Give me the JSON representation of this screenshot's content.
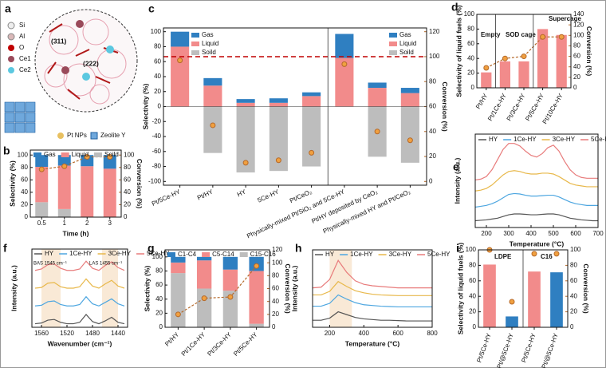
{
  "panel_a": {
    "label": "a",
    "legend": [
      "Si",
      "Al",
      "O",
      "Ce1",
      "Ce2"
    ],
    "facets": [
      "(311)",
      "(222)"
    ],
    "items": [
      "Pt NPs",
      "Zeolite Y"
    ]
  },
  "chart_data": [
    {
      "panel": "b",
      "type": "bar",
      "categories": [
        "0.5",
        "1",
        "2",
        "3"
      ],
      "xlabel": "Time (h)",
      "ylabel": "Selectivity (%)",
      "y2label": "Conversion (%)",
      "ylim": [
        0,
        108
      ],
      "yticks": [
        0,
        20,
        40,
        60,
        80,
        100
      ],
      "y2lim": [
        0,
        108
      ],
      "y2ticks": [
        0,
        20,
        40,
        60,
        80,
        100
      ],
      "legend": "top",
      "series": [
        {
          "name": "Gas",
          "color": "#2f7fc1",
          "values": [
            19,
            17,
            18,
            22
          ]
        },
        {
          "name": "Liquid",
          "color": "#f28b8b",
          "values": [
            57,
            70,
            82,
            78
          ]
        },
        {
          "name": "Soild",
          "color": "#bdbdbd",
          "values": [
            24,
            13,
            0,
            0
          ]
        },
        {
          "axis": "y2",
          "color": "#b5692a",
          "values": [
            77,
            82,
            97,
            97
          ]
        }
      ]
    },
    {
      "panel": "c",
      "type": "bar",
      "categories": [
        "Pt/5Ce-HY",
        "Pt/HY",
        "HY",
        "5Ce-HY",
        "Pt/CeO₂",
        "Physically-mixed Pt/SiO₂ and 5Ce-HY",
        "Pt/HY deposited by CeO₂",
        "Physically-mixed HY and Pt/CeO₂"
      ],
      "ylabel": "Selectivity (%)",
      "y2label": "Conversion (%)",
      "ylim": [
        -105,
        105
      ],
      "yticks": [
        -100,
        -80,
        -60,
        -40,
        -20,
        0,
        20,
        40,
        60,
        80,
        100
      ],
      "y2lim": [
        -3,
        123
      ],
      "y2ticks": [
        0,
        20,
        40,
        60,
        80,
        100,
        120
      ],
      "reference_y2": 100,
      "legend": "top-right",
      "series": [
        {
          "name": "Gas",
          "color": "#2f7fc1",
          "values": [
            20,
            10,
            5,
            6,
            5,
            32,
            7,
            7
          ]
        },
        {
          "name": "Liquid",
          "color": "#f28b8b",
          "values": [
            80,
            28,
            5,
            5,
            14,
            65,
            25,
            18
          ]
        },
        {
          "name": "Soild",
          "color": "#bdbdbd",
          "values": [
            0,
            -62,
            -88,
            -86,
            -80,
            0,
            -67,
            -75
          ]
        },
        {
          "axis": "y2",
          "style": "markers",
          "color": "#b5692a",
          "values": [
            97,
            45,
            15,
            17,
            23,
            94,
            40,
            33
          ]
        }
      ]
    },
    {
      "panel": "d",
      "type": "bar",
      "categories": [
        "Pt/HY",
        "Pt/1Ce-HY",
        "Pt/3Ce-HY",
        "Pt/5Ce-HY",
        "Pt/10Ce-HY"
      ],
      "ylabel": "Selectivity of liquid fuels (%)",
      "y2label": "Conversion (%)",
      "ylim": [
        0,
        100
      ],
      "yticks": [
        0,
        20,
        40,
        60,
        80,
        100
      ],
      "y2lim": [
        0,
        140
      ],
      "y2ticks": [
        0,
        20,
        40,
        60,
        80,
        100,
        120,
        140
      ],
      "annotations": [
        "Empty",
        "SOD cage",
        "Supercage"
      ],
      "series": [
        {
          "color": "#f28b8b",
          "values": [
            21,
            36,
            36,
            80,
            72
          ]
        },
        {
          "axis": "y2",
          "color": "#b5692a",
          "values": [
            38,
            56,
            60,
            97,
            97
          ]
        }
      ]
    },
    {
      "panel": "e",
      "type": "line",
      "xlabel": "Temperature (°C)",
      "ylabel": "Intensity (a.u.)",
      "xlim": [
        150,
        700
      ],
      "xticks": [
        200,
        300,
        400,
        500,
        600,
        700
      ],
      "ylim": [
        0,
        11
      ],
      "legend": "top",
      "x": [
        150,
        175,
        200,
        225,
        250,
        275,
        300,
        325,
        350,
        375,
        400,
        425,
        450,
        475,
        500,
        525,
        550,
        575,
        600,
        625,
        650,
        675,
        700
      ],
      "series": [
        {
          "name": "HY",
          "color": "#555555",
          "values": [
            0.8,
            0.85,
            0.9,
            1.0,
            1.1,
            1.3,
            1.5,
            1.6,
            1.6,
            1.55,
            1.5,
            1.5,
            1.55,
            1.6,
            1.6,
            1.5,
            1.3,
            1.1,
            1.0,
            0.9,
            0.85,
            0.8,
            0.8
          ]
        },
        {
          "name": "1Ce-HY",
          "color": "#4da6e0",
          "values": [
            2.4,
            2.5,
            2.6,
            2.8,
            3.1,
            3.5,
            3.9,
            4.0,
            3.95,
            3.8,
            3.7,
            3.7,
            3.75,
            3.8,
            3.8,
            3.6,
            3.3,
            3.0,
            2.8,
            2.7,
            2.6,
            2.6,
            2.6
          ]
        },
        {
          "name": "3Ce-HY",
          "color": "#e8b84a",
          "values": [
            4.3,
            4.4,
            4.6,
            5.0,
            5.6,
            6.2,
            6.6,
            6.7,
            6.6,
            6.4,
            6.3,
            6.3,
            6.4,
            6.4,
            6.3,
            6.0,
            5.6,
            5.2,
            5.0,
            4.9,
            4.8,
            4.8,
            4.8
          ]
        },
        {
          "name": "5Ce-HY",
          "color": "#e87b7b",
          "values": [
            5.6,
            5.7,
            6.0,
            6.8,
            8.0,
            9.2,
            9.9,
            9.9,
            9.6,
            9.0,
            8.5,
            8.3,
            8.7,
            9.4,
            9.7,
            9.0,
            7.8,
            6.8,
            6.2,
            5.9,
            5.8,
            5.8,
            5.8
          ]
        }
      ]
    },
    {
      "panel": "f",
      "type": "line",
      "xlabel": "Wavenumber (cm⁻¹)",
      "ylabel": "Intensity (a.u.)",
      "xlim": [
        1575,
        1425
      ],
      "xticks": [
        1560,
        1520,
        1480,
        1440
      ],
      "ylim": [
        0,
        11
      ],
      "legend": "top",
      "bands": [
        [
          1560,
          1530
        ],
        [
          1465,
          1440
        ]
      ],
      "annotations": [
        "BAS 1545 cm⁻¹",
        "LAS 1455 cm⁻¹"
      ],
      "x": [
        1570,
        1560,
        1550,
        1540,
        1530,
        1520,
        1510,
        1500,
        1490,
        1480,
        1470,
        1460,
        1450,
        1440,
        1430
      ],
      "series": [
        {
          "name": "HY",
          "color": "#555555",
          "values": [
            0.5,
            0.6,
            1.0,
            1.1,
            0.7,
            0.5,
            0.5,
            0.7,
            1.8,
            0.8,
            0.5,
            0.9,
            1.4,
            0.7,
            0.5
          ]
        },
        {
          "name": "1Ce-HY",
          "color": "#4da6e0",
          "values": [
            3.0,
            3.1,
            3.6,
            3.7,
            3.2,
            3.0,
            3.0,
            3.2,
            4.3,
            3.3,
            3.0,
            3.5,
            4.0,
            3.3,
            3.0
          ]
        },
        {
          "name": "3Ce-HY",
          "color": "#e8b84a",
          "values": [
            5.5,
            5.6,
            6.2,
            6.3,
            5.7,
            5.5,
            5.5,
            5.7,
            6.8,
            5.8,
            5.5,
            6.1,
            6.6,
            5.8,
            5.5
          ]
        },
        {
          "name": "5Ce-HY",
          "color": "#e87b7b",
          "values": [
            8.0,
            8.2,
            8.8,
            8.9,
            8.3,
            8.0,
            8.0,
            8.2,
            9.3,
            8.3,
            8.0,
            8.7,
            9.2,
            8.4,
            8.0
          ]
        }
      ]
    },
    {
      "panel": "g",
      "type": "bar",
      "categories": [
        "Pt/HY",
        "Pt/1Ce-HY",
        "Pt/3Ce-HY",
        "Pt/5Ce-HY"
      ],
      "ylabel": "Selectivity (%)",
      "y2label": "Conversion (%)",
      "ylim": [
        0,
        110
      ],
      "yticks": [
        0,
        20,
        40,
        60,
        80,
        100
      ],
      "y2lim": [
        0,
        120
      ],
      "y2ticks": [
        0,
        20,
        40,
        60,
        80,
        100,
        120
      ],
      "legend": "top",
      "series": [
        {
          "name": "C1-C4",
          "color": "#2f7fc1",
          "values": [
            8,
            5,
            18,
            20
          ]
        },
        {
          "name": "C5-C14",
          "color": "#f28b8b",
          "values": [
            15,
            40,
            30,
            75
          ]
        },
        {
          "name": "C15-C16",
          "color": "#bdbdbd",
          "values": [
            77,
            55,
            52,
            5
          ]
        },
        {
          "axis": "y2",
          "color": "#b5692a",
          "values": [
            20,
            45,
            47,
            95
          ]
        }
      ]
    },
    {
      "panel": "h",
      "type": "line",
      "xlabel": "Temperature (°C)",
      "ylabel": "Intensity (a.u.)",
      "xlim": [
        100,
        800
      ],
      "xticks": [
        200,
        400,
        600,
        800
      ],
      "ylim": [
        0,
        11
      ],
      "legend": "top",
      "bands": [
        [
          200,
          330
        ]
      ],
      "x": [
        100,
        150,
        200,
        250,
        300,
        350,
        400,
        450,
        500,
        550,
        600,
        650,
        700,
        750,
        800
      ],
      "series": [
        {
          "name": "HY",
          "color": "#555555",
          "values": [
            1.0,
            1.0,
            1.3,
            2.2,
            1.8,
            1.4,
            1.2,
            1.1,
            1.0,
            1.0,
            0.95,
            0.9,
            0.9,
            0.9,
            0.9
          ]
        },
        {
          "name": "1Ce-HY",
          "color": "#4da6e0",
          "values": [
            3.0,
            3.0,
            3.4,
            4.6,
            4.0,
            3.5,
            3.2,
            3.1,
            3.0,
            2.95,
            2.9,
            2.9,
            2.9,
            2.9,
            2.9
          ]
        },
        {
          "name": "3Ce-HY",
          "color": "#e8b84a",
          "values": [
            4.6,
            4.6,
            5.1,
            6.5,
            5.8,
            5.2,
            4.9,
            4.7,
            4.6,
            4.55,
            4.5,
            4.5,
            4.5,
            4.5,
            4.5
          ]
        },
        {
          "name": "5Ce-HY",
          "color": "#e87b7b",
          "values": [
            5.6,
            5.7,
            6.8,
            9.5,
            7.8,
            6.6,
            6.1,
            5.9,
            5.8,
            5.7,
            5.6,
            5.6,
            5.6,
            5.6,
            5.6
          ]
        }
      ]
    },
    {
      "panel": "i",
      "type": "bar",
      "categories": [
        "Pt/5Ce-HY",
        "Pt/@5Ce-HY",
        "Pt/5Ce-HY",
        "Pt/@5Ce-HY"
      ],
      "ylabel": "Selectivity of liquid fuels (%)",
      "y2label": "Conversion (%)",
      "ylim": [
        0,
        100
      ],
      "yticks": [
        0,
        20,
        40,
        60,
        80,
        100
      ],
      "y2lim": [
        0,
        100
      ],
      "y2ticks": [
        0,
        20,
        40,
        60,
        80,
        100
      ],
      "annotations": [
        "LDPE",
        "C16"
      ],
      "series": [
        {
          "colors": [
            "#f28b8b",
            "#2f7fc1",
            "#f28b8b",
            "#2f7fc1"
          ],
          "values": [
            81,
            14,
            72,
            71
          ]
        },
        {
          "axis": "y2",
          "style": "markers",
          "color": "#b5692a",
          "values": [
            100,
            33,
            95,
            95
          ]
        }
      ]
    }
  ]
}
